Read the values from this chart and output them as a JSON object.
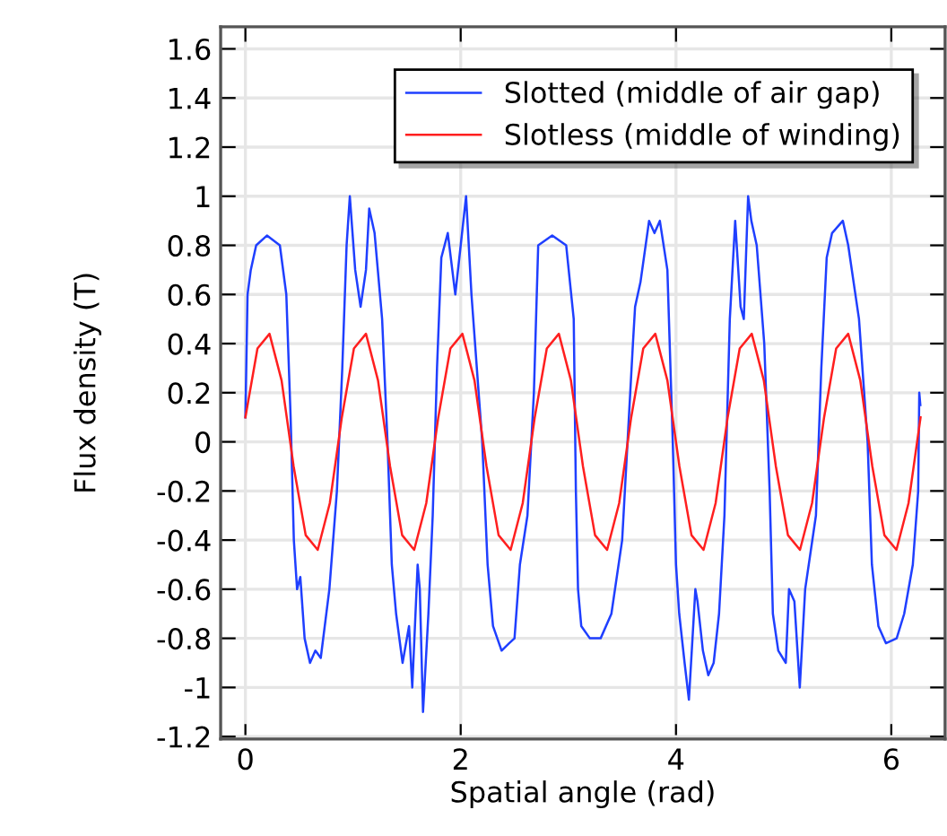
{
  "chart_data": {
    "type": "line",
    "xlabel": "Spatial angle (rad)",
    "ylabel": "Flux density (T)",
    "xlim": [
      -0.23,
      6.5
    ],
    "xticks": [
      0,
      2,
      4,
      6
    ],
    "ylim": [
      -1.21,
      1.69
    ],
    "yticks": [
      -1.2,
      -1,
      -0.8,
      -0.6,
      -0.4,
      -0.2,
      0,
      0.2,
      0.4,
      0.6,
      0.8,
      1,
      1.2,
      1.4,
      1.6
    ],
    "grid": true,
    "legend": "top right",
    "line_style": "solid",
    "marker": "none",
    "series": [
      {
        "name": "Slotted (middle of air gap)",
        "color": "#1f3fff",
        "x": [
          0,
          0.02,
          0.05,
          0.1,
          0.2,
          0.32,
          0.38,
          0.42,
          0.45,
          0.48,
          0.51,
          0.55,
          0.6,
          0.65,
          0.7,
          0.78,
          0.85,
          0.9,
          0.94,
          0.97,
          1.02,
          1.07,
          1.12,
          1.15,
          1.2,
          1.27,
          1.32,
          1.36,
          1.4,
          1.46,
          1.52,
          1.55,
          1.6,
          1.62,
          1.65,
          1.7,
          1.74,
          1.78,
          1.82,
          1.88,
          1.95,
          2.0,
          2.05,
          2.1,
          2.2,
          2.25,
          2.3,
          2.38,
          2.45,
          2.5,
          2.55,
          2.62,
          2.68,
          2.72,
          2.85,
          2.98,
          3.05,
          3.07,
          3.09,
          3.12,
          3.2,
          3.3,
          3.4,
          3.5,
          3.55,
          3.6,
          3.62,
          3.67,
          3.75,
          3.8,
          3.85,
          3.92,
          3.97,
          4.0,
          4.03,
          4.08,
          4.12,
          4.18,
          4.2,
          4.25,
          4.3,
          4.35,
          4.4,
          4.45,
          4.5,
          4.55,
          4.6,
          4.63,
          4.67,
          4.7,
          4.75,
          4.82,
          4.87,
          4.9,
          4.95,
          5.02,
          5.05,
          5.1,
          5.15,
          5.2,
          5.3,
          5.35,
          5.4,
          5.45,
          5.55,
          5.6,
          5.65,
          5.7,
          5.78,
          5.82,
          5.88,
          5.95,
          6.05,
          6.12,
          6.2,
          6.25,
          6.26,
          6.27
        ],
        "values": [
          0.1,
          0.6,
          0.7,
          0.8,
          0.84,
          0.8,
          0.6,
          0.1,
          -0.4,
          -0.6,
          -0.55,
          -0.8,
          -0.9,
          -0.85,
          -0.88,
          -0.6,
          -0.2,
          0.3,
          0.8,
          1.0,
          0.7,
          0.55,
          0.7,
          0.95,
          0.85,
          0.5,
          0.0,
          -0.5,
          -0.7,
          -0.9,
          -0.75,
          -1.0,
          -0.5,
          -0.6,
          -1.1,
          -0.7,
          -0.3,
          0.3,
          0.75,
          0.85,
          0.6,
          0.8,
          1.0,
          0.6,
          0.0,
          -0.5,
          -0.75,
          -0.85,
          -0.82,
          -0.8,
          -0.5,
          -0.3,
          0.2,
          0.8,
          0.84,
          0.8,
          0.5,
          -0.2,
          -0.6,
          -0.75,
          -0.8,
          -0.8,
          -0.7,
          -0.4,
          0.0,
          0.4,
          0.55,
          0.65,
          0.9,
          0.85,
          0.9,
          0.7,
          0.0,
          -0.5,
          -0.7,
          -0.9,
          -1.05,
          -0.6,
          -0.65,
          -0.85,
          -0.95,
          -0.9,
          -0.7,
          -0.3,
          0.5,
          0.9,
          0.55,
          0.5,
          1.0,
          0.9,
          0.8,
          0.4,
          -0.2,
          -0.7,
          -0.85,
          -0.9,
          -0.6,
          -0.65,
          -1.0,
          -0.6,
          -0.3,
          0.3,
          0.75,
          0.85,
          0.9,
          0.8,
          0.65,
          0.5,
          0.0,
          -0.5,
          -0.75,
          -0.82,
          -0.8,
          -0.7,
          -0.5,
          -0.2,
          0.2,
          0.15
        ]
      },
      {
        "name": "Slotless (middle of winding)",
        "color": "#ff1f1f",
        "x": [
          0,
          0.112,
          0.224,
          0.336,
          0.448,
          0.56,
          0.672,
          0.784,
          0.896,
          1.008,
          1.12,
          1.232,
          1.344,
          1.456,
          1.568,
          1.68,
          1.792,
          1.904,
          2.016,
          2.128,
          2.24,
          2.352,
          2.464,
          2.576,
          2.688,
          2.8,
          2.912,
          3.024,
          3.136,
          3.248,
          3.36,
          3.472,
          3.584,
          3.696,
          3.808,
          3.92,
          4.032,
          4.144,
          4.256,
          4.368,
          4.48,
          4.592,
          4.704,
          4.816,
          4.928,
          5.04,
          5.152,
          5.264,
          5.376,
          5.488,
          5.6,
          5.712,
          5.824,
          5.936,
          6.048,
          6.16,
          6.272
        ],
        "values": [
          0.1,
          0.38,
          0.44,
          0.25,
          -0.1,
          -0.38,
          -0.44,
          -0.25,
          0.1,
          0.38,
          0.44,
          0.25,
          -0.1,
          -0.38,
          -0.44,
          -0.25,
          0.1,
          0.38,
          0.44,
          0.25,
          -0.1,
          -0.38,
          -0.44,
          -0.25,
          0.1,
          0.38,
          0.44,
          0.25,
          -0.1,
          -0.38,
          -0.44,
          -0.25,
          0.1,
          0.38,
          0.44,
          0.25,
          -0.1,
          -0.38,
          -0.44,
          -0.25,
          0.1,
          0.38,
          0.44,
          0.25,
          -0.1,
          -0.38,
          -0.44,
          -0.25,
          0.1,
          0.38,
          0.44,
          0.25,
          -0.1,
          -0.38,
          -0.44,
          -0.25,
          0.1
        ]
      }
    ]
  }
}
